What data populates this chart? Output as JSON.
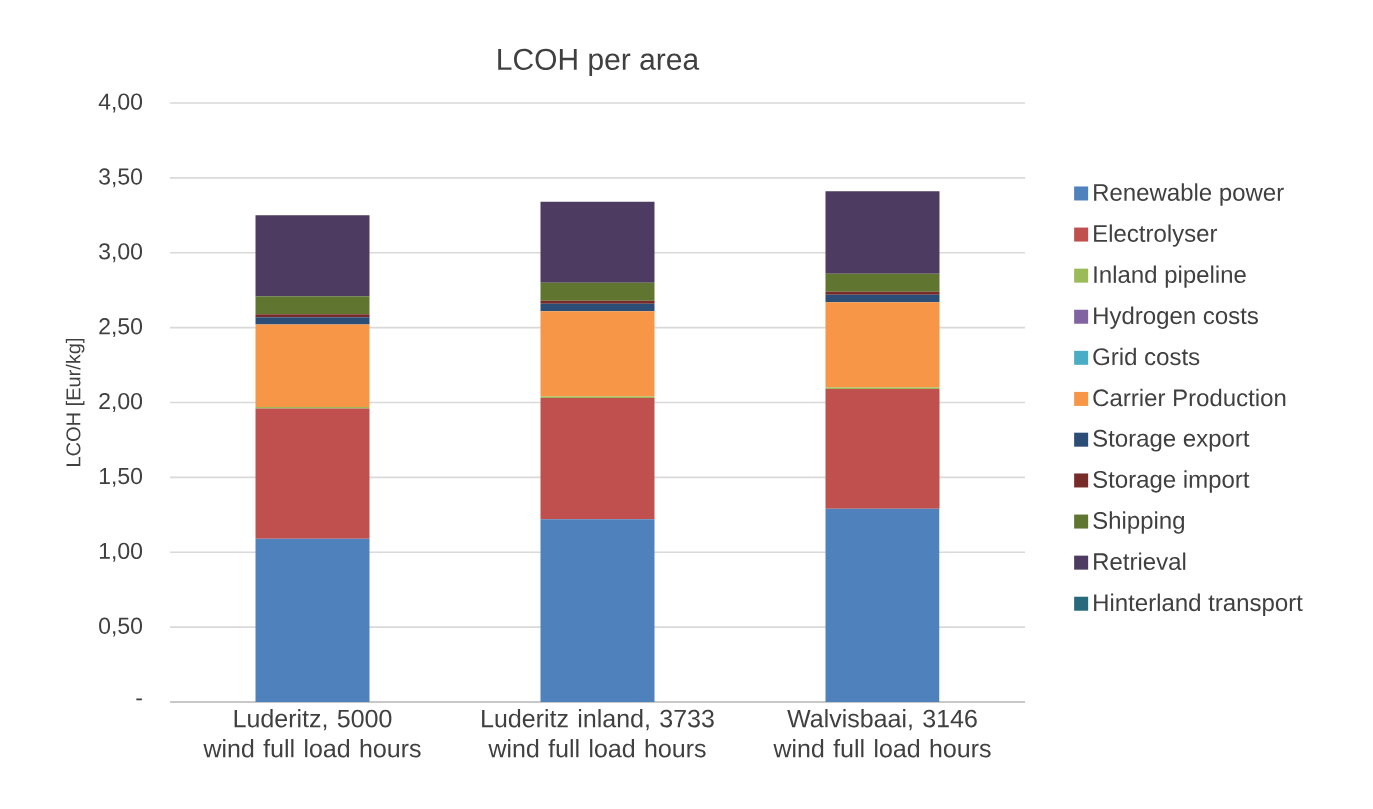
{
  "chart_data": {
    "type": "bar",
    "stacked": true,
    "title": "LCOH per area",
    "ylabel": "LCOH [Eur/kg]",
    "categories": [
      "Luderitz, 5000 wind full load hours",
      "Luderitz inland, 3733 wind full load hours",
      "Walvisbaai, 3146 wind full load hours"
    ],
    "ylim": [
      0,
      4
    ],
    "yticks": [
      {
        "value": 0,
        "label": "-"
      },
      {
        "value": 0.5,
        "label": "0,50"
      },
      {
        "value": 1,
        "label": "1,00"
      },
      {
        "value": 1.5,
        "label": "1,50"
      },
      {
        "value": 2,
        "label": "2,00"
      },
      {
        "value": 2.5,
        "label": "2,50"
      },
      {
        "value": 3,
        "label": "3,00"
      },
      {
        "value": 3.5,
        "label": "3,50"
      },
      {
        "value": 4,
        "label": "4,00"
      }
    ],
    "grid": "y",
    "legend": "right",
    "series": [
      {
        "name": "Renewable power",
        "color": "#4f81bd",
        "values": [
          1.09,
          1.22,
          1.29
        ]
      },
      {
        "name": "Electrolyser",
        "color": "#c0504d",
        "values": [
          0.87,
          0.81,
          0.8
        ]
      },
      {
        "name": "Inland pipeline",
        "color": "#9bbb59",
        "values": [
          0.01,
          0.01,
          0.01
        ]
      },
      {
        "name": "Hydrogen costs",
        "color": "#8064a2",
        "values": [
          0,
          0,
          0
        ]
      },
      {
        "name": "Grid costs",
        "color": "#4bacc6",
        "values": [
          0,
          0,
          0
        ]
      },
      {
        "name": "Carrier Production",
        "color": "#f79646",
        "values": [
          0.55,
          0.57,
          0.57
        ]
      },
      {
        "name": "Storage export",
        "color": "#2c4d75",
        "values": [
          0.05,
          0.05,
          0.05
        ]
      },
      {
        "name": "Storage import",
        "color": "#772c2a",
        "values": [
          0.02,
          0.02,
          0.02
        ]
      },
      {
        "name": "Shipping",
        "color": "#5f7530",
        "values": [
          0.12,
          0.12,
          0.12
        ]
      },
      {
        "name": "Retrieval",
        "color": "#4d3b62",
        "values": [
          0.54,
          0.54,
          0.55
        ]
      },
      {
        "name": "Hinterland transport",
        "color": "#276a7c",
        "values": [
          0,
          0,
          0
        ]
      }
    ]
  }
}
